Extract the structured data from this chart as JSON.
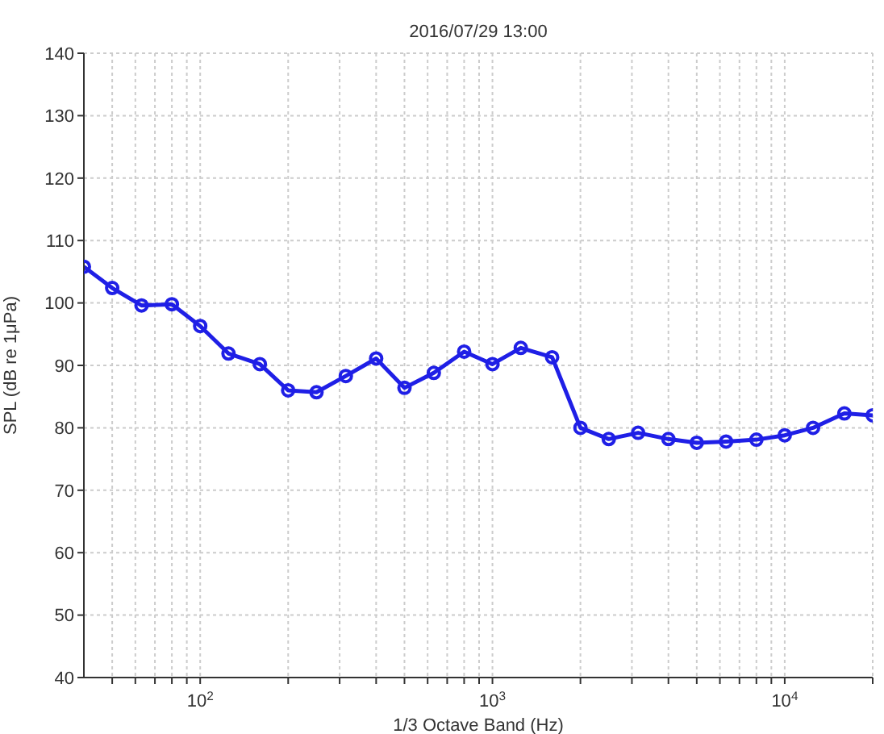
{
  "chart_data": {
    "type": "line",
    "title": "2016/07/29 13:00",
    "xlabel": "1/3 Octave Band (Hz)",
    "ylabel": "SPL (dB re 1μPa)",
    "x": [
      40,
      50,
      63,
      80,
      100,
      125,
      160,
      200,
      250,
      315,
      400,
      500,
      630,
      800,
      1000,
      1250,
      1600,
      2000,
      2500,
      3150,
      4000,
      5000,
      6300,
      8000,
      10000,
      12500,
      16000,
      20000
    ],
    "series": [
      {
        "color": "#1f1fe6",
        "values": [
          105.8,
          102.4,
          99.6,
          99.8,
          96.3,
          91.9,
          90.2,
          86,
          85.7,
          88.3,
          91.1,
          86.4,
          88.8,
          92.2,
          90.2,
          92.8,
          91.3,
          80,
          78.2,
          79.2,
          78.2,
          77.6,
          77.8,
          78.1,
          78.8,
          80,
          82.3,
          82
        ]
      }
    ],
    "log": "x",
    "xlim": [
      40,
      20000
    ],
    "xticks": [
      {
        "value": 50,
        "label": null
      },
      {
        "value": 60,
        "label": null
      },
      {
        "value": 70,
        "label": null
      },
      {
        "value": 80,
        "label": null
      },
      {
        "value": 90,
        "label": null
      },
      {
        "value": 100,
        "label": "10$^{2}$"
      },
      {
        "value": 200,
        "label": null
      },
      {
        "value": 300,
        "label": null
      },
      {
        "value": 400,
        "label": null
      },
      {
        "value": 500,
        "label": null
      },
      {
        "value": 600,
        "label": null
      },
      {
        "value": 700,
        "label": null
      },
      {
        "value": 800,
        "label": null
      },
      {
        "value": 900,
        "label": null
      },
      {
        "value": 1000,
        "label": "10$^{3}$"
      },
      {
        "value": 2000,
        "label": null
      },
      {
        "value": 3000,
        "label": null
      },
      {
        "value": 4000,
        "label": null
      },
      {
        "value": 5000,
        "label": null
      },
      {
        "value": 6000,
        "label": null
      },
      {
        "value": 7000,
        "label": null
      },
      {
        "value": 8000,
        "label": null
      },
      {
        "value": 9000,
        "label": null
      },
      {
        "value": 10000,
        "label": "10$^{4}$"
      },
      {
        "value": 20000,
        "label": null
      }
    ],
    "ylim": [
      40,
      140
    ],
    "yticks": [
      40,
      50,
      60,
      70,
      80,
      90,
      100,
      110,
      120,
      130,
      140
    ],
    "grid": true,
    "marker": "circle",
    "line_style": "solid",
    "legend": false
  }
}
